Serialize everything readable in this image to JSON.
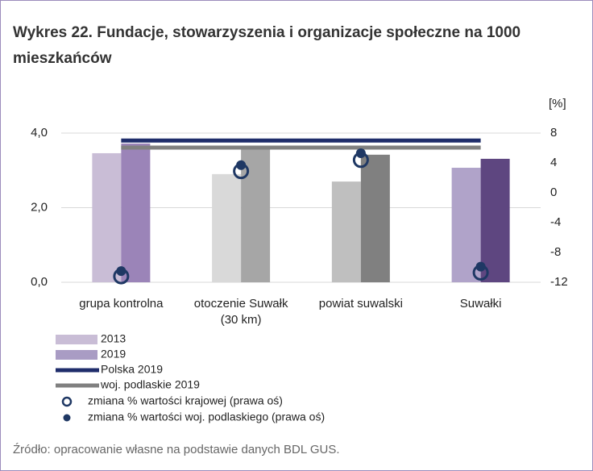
{
  "chart_data": {
    "type": "bar",
    "title": "Wykres 22. Fundacje, stowarzyszenia i organizacje społeczne na 1000 mieszkańców",
    "y2label": "[%]",
    "categories": [
      "grupa kontrolna",
      "otoczenie Suwałk (30 km)",
      "powiat suwalski",
      "Suwałki"
    ],
    "ylim": [
      0,
      4
    ],
    "yticks": [
      {
        "value": 0,
        "label": "0,0"
      },
      {
        "value": 2,
        "label": "2,0"
      },
      {
        "value": 4,
        "label": "4,0"
      }
    ],
    "y2lim": [
      -12,
      8
    ],
    "y2ticks": [
      -12,
      -8,
      -4,
      0,
      4,
      8
    ],
    "grid": true,
    "series": [
      {
        "name": "2013",
        "type": "bar",
        "color": "#c9bdd6",
        "colors": [
          "#c9bdd6",
          "#d9d9d9",
          "#bfbfbf",
          "#b0a3c9"
        ],
        "values": [
          3.46,
          2.9,
          2.7,
          3.07
        ]
      },
      {
        "name": "2019",
        "type": "bar",
        "color": "#a99cc4",
        "colors": [
          "#9b84b8",
          "#a6a6a6",
          "#808080",
          "#5e4680"
        ],
        "values": [
          3.72,
          3.63,
          3.42,
          3.31
        ]
      },
      {
        "name": "Polska 2019",
        "type": "line",
        "color": "#1f2d6b",
        "values": [
          3.8,
          3.8,
          3.8,
          3.8
        ]
      },
      {
        "name": "woj. podlaskie 2019",
        "type": "line",
        "color": "#808080",
        "values": [
          3.61,
          3.61,
          3.61,
          3.61
        ]
      },
      {
        "name": "zmiana % wartości krajowej (prawa oś)",
        "type": "scatter",
        "marker": "open",
        "axis": "y2",
        "color": "#1f3864",
        "values": [
          -11.2,
          2.9,
          4.4,
          -10.7
        ]
      },
      {
        "name": "zmiana % wartości woj. podlaskiego (prawa oś)",
        "type": "scatter",
        "marker": "filled",
        "axis": "y2",
        "color": "#1f3864",
        "values": [
          -10.5,
          3.7,
          5.3,
          -9.9
        ]
      }
    ]
  },
  "source": "Źródło: opracowanie własne na podstawie danych BDL GUS."
}
